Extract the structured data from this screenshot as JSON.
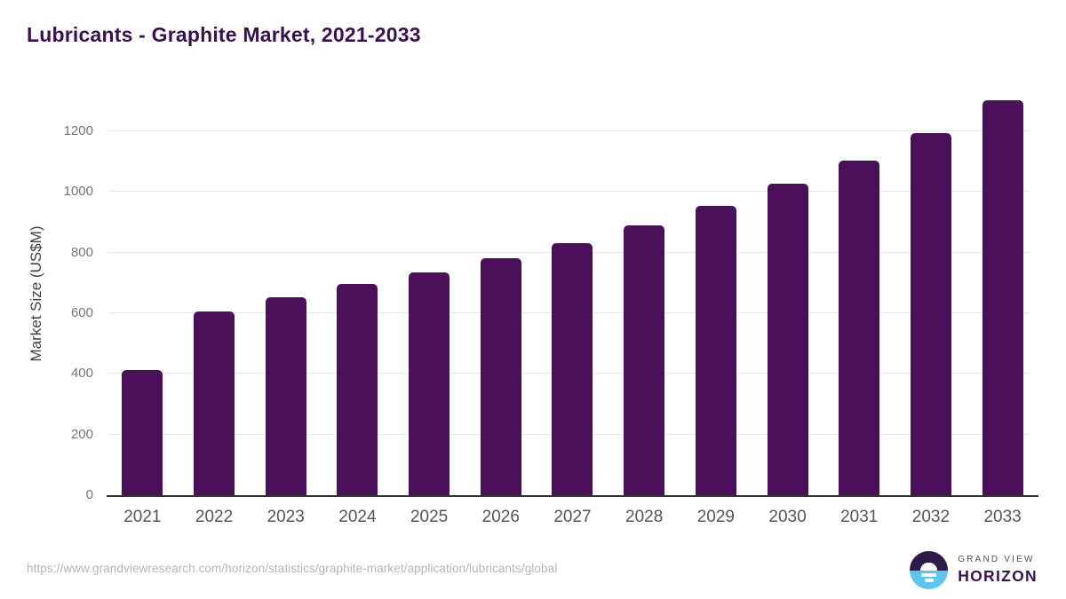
{
  "title": "Lubricants - Graphite Market, 2021-2033",
  "footer": {
    "source_url": "https://www.grandviewresearch.com/horizon/statistics/graphite-market/application/lubricants/global"
  },
  "logo": {
    "line1": "GRAND VIEW",
    "line2": "HORIZON"
  },
  "colors": {
    "bar": "#4a1059",
    "title": "#3a1150",
    "gridline": "#e8e8e8",
    "axis_line": "#333333",
    "y_tick": "#767676",
    "x_tick": "#555555",
    "source_url": "#b5b5b5",
    "logo_dark": "#2e1a47",
    "logo_blue": "#5bc6f0"
  },
  "chart_data": {
    "type": "bar",
    "title": "Lubricants - Graphite Market, 2021-2033",
    "categories": [
      "2021",
      "2022",
      "2023",
      "2024",
      "2025",
      "2026",
      "2027",
      "2028",
      "2029",
      "2030",
      "2031",
      "2032",
      "2033"
    ],
    "values": [
      414,
      607,
      653,
      697,
      734,
      781,
      832,
      890,
      953,
      1028,
      1102,
      1195,
      1303
    ],
    "xlabel": "",
    "ylabel": "Market Size (US$M)",
    "yticks": [
      0,
      200,
      400,
      600,
      800,
      1000,
      1200
    ],
    "ylim": [
      0,
      1340
    ],
    "grid": true,
    "legend": false
  }
}
